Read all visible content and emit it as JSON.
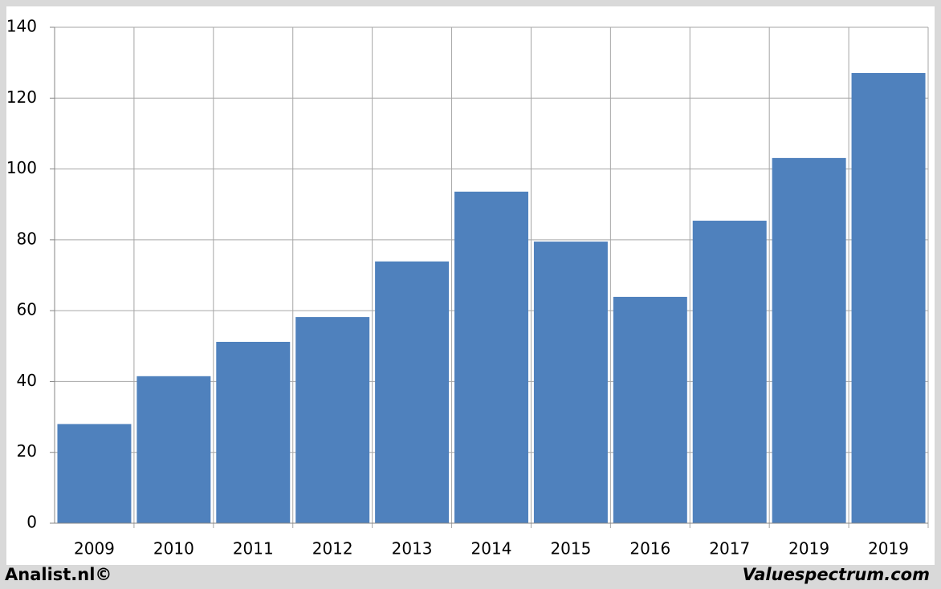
{
  "chart_data": {
    "type": "bar",
    "categories": [
      "2009",
      "2010",
      "2011",
      "2012",
      "2013",
      "2014",
      "2015",
      "2016",
      "2017",
      "2019",
      "2019"
    ],
    "values": [
      28,
      41.5,
      51.2,
      58.2,
      73.9,
      93.6,
      79.5,
      63.9,
      85.4,
      103.1,
      127.1
    ],
    "color": "#4f81bd",
    "ylim": [
      0,
      140
    ],
    "yticks": [
      0,
      20,
      40,
      60,
      80,
      100,
      120,
      140
    ],
    "grid": true
  },
  "footer": {
    "left": "Analist.nl©",
    "right": "Valuespectrum.com"
  }
}
